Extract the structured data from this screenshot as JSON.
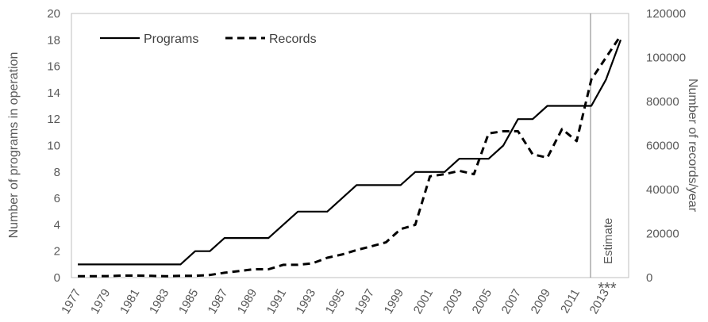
{
  "chart_data": {
    "type": "line",
    "x": [
      1977,
      1978,
      1979,
      1980,
      1981,
      1982,
      1983,
      1984,
      1985,
      1986,
      1987,
      1988,
      1989,
      1990,
      1991,
      1992,
      1993,
      1994,
      1995,
      1996,
      1997,
      1998,
      1999,
      2000,
      2001,
      2002,
      2003,
      2004,
      2005,
      2006,
      2007,
      2008,
      2009,
      2010,
      2011,
      2012,
      2013,
      2014
    ],
    "x_tick_labels": [
      "1977",
      "1979",
      "1981",
      "1983",
      "1985",
      "1987",
      "1989",
      "1991",
      "1993",
      "1995",
      "1997",
      "1999",
      "2001",
      "2003",
      "2005",
      "2007",
      "2009",
      "2011",
      "2013"
    ],
    "y_left": {
      "label": "Number of programs in operation",
      "lim": [
        0,
        20
      ],
      "ticks": [
        "0",
        "2",
        "4",
        "6",
        "8",
        "10",
        "12",
        "14",
        "16",
        "18",
        "20"
      ]
    },
    "y_right": {
      "label": "Number of records/year",
      "lim": [
        0,
        120000
      ],
      "ticks": [
        "0",
        "20000",
        "40000",
        "60000",
        "80000",
        "100000",
        "120000"
      ]
    },
    "series": [
      {
        "name": "Programs",
        "axis": "left",
        "style": "solid",
        "values": [
          1,
          1,
          1,
          1,
          1,
          1,
          1,
          1,
          2,
          2,
          3,
          3,
          3,
          3,
          4,
          5,
          5,
          5,
          6,
          7,
          7,
          7,
          7,
          8,
          8,
          8,
          9,
          9,
          9,
          10,
          12,
          12,
          13,
          13,
          13,
          13,
          15,
          18
        ]
      },
      {
        "name": "Records",
        "axis": "right",
        "style": "dashed",
        "values": [
          600,
          600,
          700,
          900,
          900,
          800,
          600,
          800,
          800,
          1200,
          2200,
          3000,
          3800,
          3800,
          5800,
          5800,
          6500,
          9000,
          10500,
          12500,
          14200,
          16000,
          22000,
          24000,
          46000,
          47000,
          48500,
          47000,
          65500,
          66500,
          66500,
          56000,
          54500,
          67500,
          62000,
          90000,
          100000,
          110000
        ]
      }
    ],
    "annotation": {
      "text": "Estimate",
      "stars": "***"
    },
    "legend": "top-left",
    "grid": false,
    "color": "#000000"
  }
}
